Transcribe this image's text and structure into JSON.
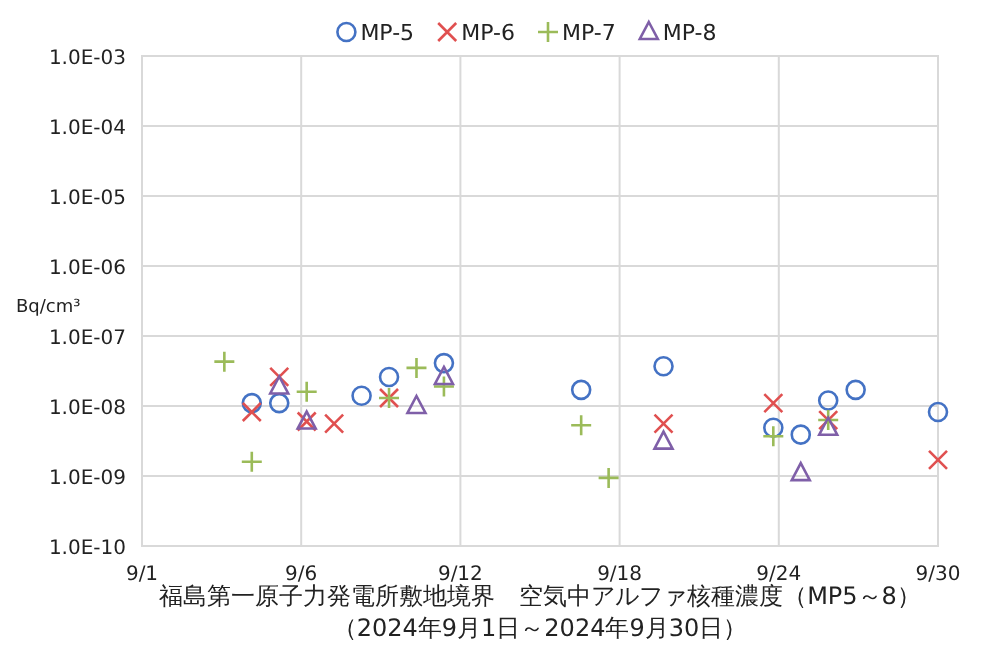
{
  "chart_data": {
    "type": "scatter",
    "title": "福島第一原子力発電所敷地境界　空気中アルファ核種濃度（MP5～8）",
    "subtitle": "（2024年9月1日～2024年9月30日）",
    "ylabel": "Bq/cm³",
    "log": true,
    "xlim": [
      "2024-09-01",
      "2024-09-30"
    ],
    "xticks": [
      {
        "value": "2024-09-01",
        "label": "9/1"
      },
      {
        "value": "2024-09-06T19:12",
        "label": "9/6"
      },
      {
        "value": "2024-09-12T14:24",
        "label": "9/12"
      },
      {
        "value": "2024-09-18T09:36",
        "label": "9/18"
      },
      {
        "value": "2024-09-24T04:48",
        "label": "9/24"
      },
      {
        "value": "2024-09-30",
        "label": "9/30"
      }
    ],
    "ylim": [
      1e-10,
      0.001
    ],
    "yticks": [
      {
        "value": 1e-10,
        "label": "1.0E-10"
      },
      {
        "value": 1e-09,
        "label": "1.0E-09"
      },
      {
        "value": 1e-08,
        "label": "1.0E-08"
      },
      {
        "value": 1e-07,
        "label": "1.0E-07"
      },
      {
        "value": 1e-06,
        "label": "1.0E-06"
      },
      {
        "value": 1e-05,
        "label": "1.0E-05"
      },
      {
        "value": 0.0001,
        "label": "1.0E-04"
      },
      {
        "value": 0.001,
        "label": "1.0E-03"
      }
    ],
    "grid": true,
    "legend": "top",
    "series": [
      {
        "name": "MP-5",
        "color": "#4472c4",
        "marker": "circle",
        "x": [
          "2024-09-05",
          "2024-09-06",
          "2024-09-09",
          "2024-09-10",
          "2024-09-12",
          "2024-09-17",
          "2024-09-20",
          "2024-09-24",
          "2024-09-25",
          "2024-09-26",
          "2024-09-27",
          "2024-09-30"
        ],
        "values": [
          1.1e-08,
          1.1e-08,
          1.4e-08,
          2.6e-08,
          4.1e-08,
          1.7e-08,
          3.7e-08,
          4.9e-09,
          3.9e-09,
          1.2e-08,
          1.7e-08,
          8.2e-09
        ]
      },
      {
        "name": "MP-6",
        "color": "#e05050",
        "marker": "cross",
        "x": [
          "2024-09-05",
          "2024-09-06",
          "2024-09-07",
          "2024-09-08",
          "2024-09-10",
          "2024-09-20",
          "2024-09-24",
          "2024-09-26",
          "2024-09-30"
        ],
        "values": [
          8.2e-09,
          2.6e-08,
          6e-09,
          5.6e-09,
          1.3e-08,
          5.6e-09,
          1.1e-08,
          6.3e-09,
          1.7e-09
        ]
      },
      {
        "name": "MP-7",
        "color": "#9bbb59",
        "marker": "plus",
        "x": [
          "2024-09-04",
          "2024-09-05",
          "2024-09-07",
          "2024-09-10",
          "2024-09-11",
          "2024-09-12",
          "2024-09-17",
          "2024-09-18",
          "2024-09-24",
          "2024-09-26"
        ],
        "values": [
          4.3e-08,
          1.6e-09,
          1.6e-08,
          1.3e-08,
          3.5e-08,
          1.9e-08,
          5.3e-09,
          9.4e-10,
          3.7e-09,
          6.3e-09
        ]
      },
      {
        "name": "MP-8",
        "color": "#7f5fa8",
        "marker": "triangle",
        "x": [
          "2024-09-06",
          "2024-09-07",
          "2024-09-11",
          "2024-09-12",
          "2024-09-20",
          "2024-09-25",
          "2024-09-26"
        ],
        "values": [
          1.9e-08,
          6e-09,
          1e-08,
          2.6e-08,
          3.1e-09,
          1.1e-09,
          4.9e-09
        ]
      }
    ]
  }
}
